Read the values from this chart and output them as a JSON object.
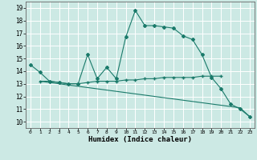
{
  "title": "",
  "xlabel": "Humidex (Indice chaleur)",
  "bg_color": "#cce9e4",
  "grid_color": "#ffffff",
  "line_color": "#1a7a6a",
  "xlim": [
    -0.5,
    23.5
  ],
  "ylim": [
    9.5,
    19.5
  ],
  "xticks": [
    0,
    1,
    2,
    3,
    4,
    5,
    6,
    7,
    8,
    9,
    10,
    11,
    12,
    13,
    14,
    15,
    16,
    17,
    18,
    19,
    20,
    21,
    22,
    23
  ],
  "yticks": [
    10,
    11,
    12,
    13,
    14,
    15,
    16,
    17,
    18,
    19
  ],
  "series": [
    {
      "x": [
        0,
        1,
        2,
        3,
        4,
        5,
        6,
        7,
        8,
        9,
        10,
        11,
        12,
        13,
        14,
        15,
        16,
        17,
        18,
        19,
        20,
        21,
        22,
        23
      ],
      "y": [
        14.5,
        13.9,
        13.2,
        13.1,
        13.0,
        13.0,
        15.3,
        13.4,
        14.3,
        13.4,
        16.7,
        18.8,
        17.6,
        17.6,
        17.5,
        17.4,
        16.8,
        16.5,
        15.3,
        13.5,
        12.6,
        11.4,
        11.0,
        10.4
      ],
      "marker": "D",
      "markersize": 2.0
    },
    {
      "x": [
        1,
        2,
        3,
        4,
        5,
        6,
        7,
        8,
        9,
        10,
        11,
        12,
        13,
        14,
        15,
        16,
        17,
        18,
        19,
        20
      ],
      "y": [
        13.2,
        13.2,
        13.1,
        13.0,
        13.0,
        13.1,
        13.2,
        13.2,
        13.2,
        13.3,
        13.3,
        13.4,
        13.4,
        13.5,
        13.5,
        13.5,
        13.5,
        13.6,
        13.6,
        13.6
      ],
      "marker": "+",
      "markersize": 3.0
    },
    {
      "x": [
        1,
        2,
        3,
        4,
        5,
        6,
        7,
        8,
        9,
        10,
        11,
        12,
        13,
        14,
        15,
        16,
        17,
        18,
        19,
        20,
        21,
        22,
        23
      ],
      "y": [
        13.2,
        13.1,
        13.0,
        12.9,
        12.8,
        12.7,
        12.6,
        12.5,
        12.4,
        12.3,
        12.2,
        12.1,
        12.0,
        11.9,
        11.8,
        11.7,
        11.6,
        11.5,
        11.4,
        11.3,
        11.2,
        11.1,
        10.4
      ],
      "marker": null,
      "markersize": 0
    }
  ]
}
